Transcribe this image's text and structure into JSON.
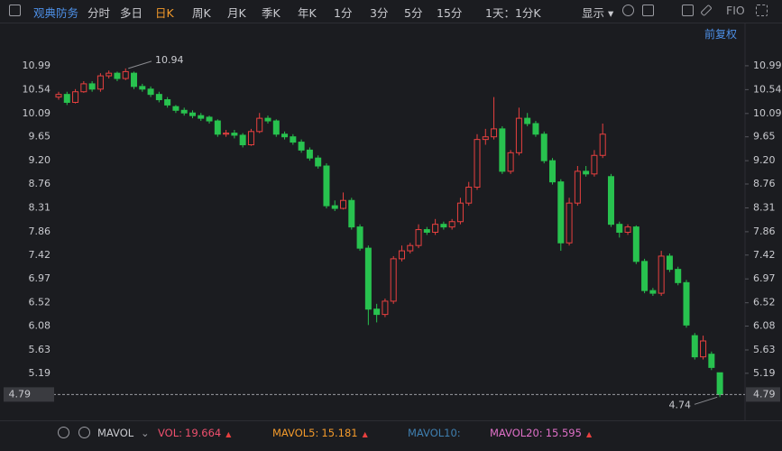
{
  "toolbar": {
    "stock": "观典防务",
    "tabs": [
      "分时",
      "多日",
      "日K",
      "周K",
      "月K",
      "季K",
      "年K",
      "1分",
      "3分",
      "5分",
      "15分",
      "1天：1分K"
    ],
    "active_tab": 2,
    "display": "显示",
    "fit_label": "FIO",
    "adjust": "前复权"
  },
  "chart_data": {
    "type": "candlestick",
    "open": [
      10.4,
      10.45,
      10.3,
      10.5,
      10.65,
      10.55,
      10.8,
      10.85,
      10.75,
      10.85,
      10.6,
      10.55,
      10.45,
      10.35,
      10.22,
      10.15,
      10.1,
      10.05,
      10.02,
      9.95,
      9.7,
      9.72,
      9.68,
      9.5,
      9.75,
      10.0,
      9.95,
      9.7,
      9.65,
      9.55,
      9.4,
      9.25,
      9.1,
      8.35,
      8.3,
      8.45,
      7.95,
      7.55,
      6.4,
      6.3,
      6.55,
      7.35,
      7.5,
      7.6,
      7.9,
      7.85,
      8.0,
      7.95,
      8.05,
      8.4,
      8.7,
      9.6,
      9.65,
      9.8,
      9.0,
      9.35,
      10.0,
      9.9,
      9.7,
      9.2,
      8.8,
      7.65,
      8.4,
      9.0,
      8.95,
      9.3,
      8.9,
      8.0,
      7.85,
      7.95,
      7.3,
      6.75,
      6.7,
      7.4,
      7.15,
      6.9,
      5.9,
      5.5,
      5.55,
      5.2
    ],
    "high": [
      10.5,
      10.5,
      10.55,
      10.7,
      10.7,
      10.85,
      10.9,
      10.88,
      10.94,
      10.88,
      10.65,
      10.6,
      10.5,
      10.4,
      10.25,
      10.2,
      10.15,
      10.1,
      10.05,
      9.98,
      9.78,
      9.78,
      9.72,
      9.8,
      10.1,
      10.05,
      9.98,
      9.75,
      9.7,
      9.6,
      9.45,
      9.3,
      9.15,
      8.45,
      8.6,
      8.5,
      8.0,
      7.6,
      6.5,
      6.6,
      7.4,
      7.6,
      7.65,
      8.0,
      7.95,
      8.1,
      8.05,
      8.1,
      8.5,
      8.8,
      9.7,
      9.8,
      10.4,
      9.85,
      9.4,
      10.2,
      10.1,
      9.95,
      9.75,
      9.25,
      8.85,
      8.5,
      9.1,
      9.1,
      9.4,
      9.9,
      8.95,
      8.05,
      8.0,
      7.98,
      7.35,
      6.8,
      7.5,
      7.45,
      7.2,
      6.95,
      5.95,
      5.9,
      5.6,
      5.2
    ],
    "low": [
      10.35,
      10.25,
      10.28,
      10.48,
      10.5,
      10.5,
      10.75,
      10.7,
      10.72,
      10.55,
      10.5,
      10.4,
      10.3,
      10.2,
      10.1,
      10.05,
      10.0,
      9.95,
      9.9,
      9.65,
      9.65,
      9.62,
      9.45,
      9.48,
      9.72,
      9.9,
      9.65,
      9.6,
      9.5,
      9.35,
      9.2,
      9.05,
      8.3,
      8.25,
      8.28,
      7.9,
      7.5,
      6.1,
      6.15,
      6.25,
      6.5,
      7.3,
      7.45,
      7.55,
      7.8,
      7.8,
      7.9,
      7.9,
      8.0,
      8.35,
      8.65,
      9.5,
      9.6,
      8.95,
      8.95,
      9.3,
      9.85,
      9.65,
      9.15,
      8.75,
      7.5,
      7.6,
      8.35,
      8.9,
      8.9,
      9.25,
      7.95,
      7.75,
      7.8,
      7.25,
      6.7,
      6.65,
      6.65,
      7.1,
      6.85,
      6.05,
      5.45,
      5.45,
      5.25,
      4.74
    ],
    "close": [
      10.45,
      10.3,
      10.5,
      10.65,
      10.55,
      10.8,
      10.85,
      10.75,
      10.88,
      10.6,
      10.55,
      10.45,
      10.35,
      10.25,
      10.15,
      10.1,
      10.05,
      10.0,
      9.95,
      9.7,
      9.72,
      9.68,
      9.5,
      9.75,
      10.0,
      9.95,
      9.7,
      9.65,
      9.55,
      9.4,
      9.25,
      9.1,
      8.35,
      8.3,
      8.45,
      7.95,
      7.55,
      6.4,
      6.3,
      6.55,
      7.35,
      7.5,
      7.6,
      7.9,
      7.85,
      8.0,
      7.95,
      8.05,
      8.4,
      8.7,
      9.6,
      9.65,
      9.8,
      9.0,
      9.35,
      10.0,
      9.9,
      9.7,
      9.2,
      8.8,
      7.65,
      8.4,
      9.0,
      8.95,
      9.3,
      9.7,
      8.0,
      7.85,
      7.95,
      7.3,
      6.75,
      6.7,
      7.4,
      7.15,
      6.9,
      6.1,
      5.5,
      5.8,
      5.3,
      4.79
    ],
    "up_color": "#e8403f",
    "down_color": "#28c24f",
    "ylim": [
      4.66,
      11.38
    ],
    "yticks": [
      10.99,
      10.54,
      10.09,
      9.65,
      {
        "value": 9.2,
        "label": "9.20"
      },
      8.76,
      8.31,
      7.86,
      7.42,
      6.97,
      6.52,
      6.08,
      5.63,
      5.19
    ],
    "current_price": 4.79,
    "max_annotation": 10.94,
    "min_annotation": 4.74
  },
  "indicator_bar": {
    "name": "MAVOL",
    "items": [
      {
        "label": "VOL:",
        "value": 19.664,
        "color": "#f0506e"
      },
      {
        "label": "MAVOL5:",
        "value": 15.181,
        "color": "#f39a2b"
      },
      {
        "label": "MAVOL10:",
        "color": "#3f7fb0"
      },
      {
        "label": "MAVOL20:",
        "value": 15.595,
        "color": "#e070c8"
      }
    ]
  }
}
